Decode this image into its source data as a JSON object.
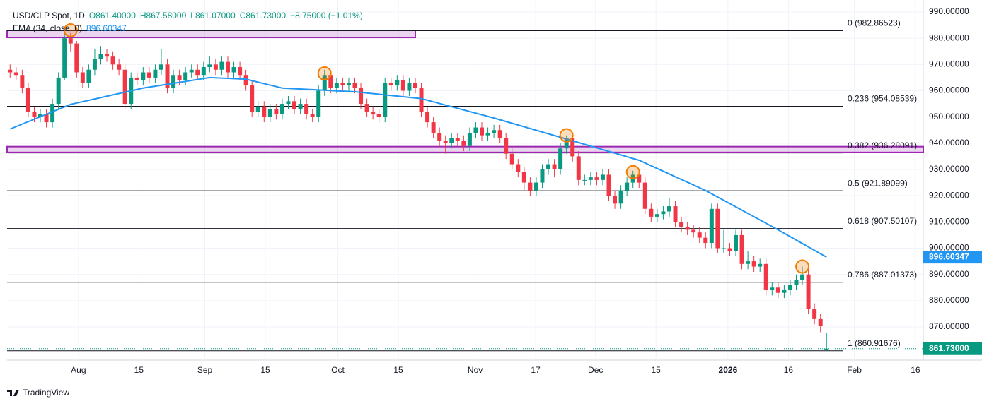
{
  "chart_data": {
    "type": "candlestick",
    "legend": {
      "symbol": "USD/CLP Spot, 1D",
      "open": "O861.40000",
      "high": "H867.58000",
      "low": "L861.07000",
      "close": "C861.73000",
      "change": "−8.75000 (−1.01%)"
    },
    "up_color": "#089981",
    "down_color": "#f23645",
    "open": [
      968,
      967,
      966,
      961,
      952,
      950,
      951,
      948,
      955,
      965,
      980,
      978,
      967,
      963,
      968,
      972,
      974,
      973,
      970,
      968,
      955,
      965,
      964,
      967,
      965,
      968,
      970,
      961,
      966,
      964,
      967,
      968,
      966,
      969,
      970,
      968,
      971,
      967,
      969,
      966,
      962,
      952,
      954,
      950,
      953,
      951,
      955,
      956,
      953,
      955,
      951,
      950,
      960,
      966,
      961,
      963,
      962,
      963,
      961,
      955,
      952,
      951,
      950,
      963,
      962,
      964,
      960,
      963,
      961,
      952,
      948,
      944,
      941,
      940,
      942,
      941,
      939,
      944,
      946,
      943,
      944,
      945,
      942,
      936,
      932,
      929,
      925,
      922,
      925,
      930,
      932,
      930,
      938,
      942,
      935,
      926,
      926,
      927,
      926,
      928,
      920,
      917,
      922,
      925,
      928,
      925,
      915,
      912,
      913,
      914,
      916,
      910,
      908,
      907,
      906,
      904,
      902,
      915,
      900,
      900,
      899,
      905,
      894,
      895,
      893,
      894,
      884,
      885,
      883,
      884,
      886,
      888,
      890,
      877,
      873,
      861.4
    ],
    "high": [
      970,
      969,
      968,
      963,
      954,
      953,
      953,
      957,
      967,
      983.5,
      982,
      979,
      969,
      970,
      976,
      977,
      976,
      975,
      972,
      970,
      967,
      967,
      969,
      969,
      970,
      976,
      972,
      968,
      968,
      969,
      970,
      970,
      971,
      973,
      972,
      973,
      973,
      971,
      971,
      968,
      964,
      956,
      956,
      955,
      955,
      957,
      958,
      958,
      957,
      957,
      953,
      962,
      968,
      968,
      965,
      965,
      965,
      965,
      963,
      957,
      954,
      953,
      965,
      965,
      966,
      966,
      965,
      965,
      963,
      954,
      950,
      946,
      943,
      944,
      944,
      943,
      946,
      948,
      948,
      946,
      947,
      947,
      944,
      938,
      934,
      931,
      927,
      927,
      932,
      934,
      934,
      940,
      943,
      944,
      937,
      928,
      929,
      929,
      930,
      930,
      922,
      924,
      927,
      929.5,
      930,
      927,
      917,
      915,
      916,
      919,
      918,
      912,
      910,
      909,
      908,
      906,
      917,
      917,
      907,
      902,
      907,
      907,
      899,
      897,
      896,
      896,
      887,
      887,
      886,
      888,
      890,
      893,
      892,
      879,
      875,
      867.58
    ],
    "low": [
      965,
      964,
      959,
      950,
      948,
      948,
      946,
      946,
      953,
      964,
      975,
      965,
      961,
      961,
      966,
      970,
      971,
      968,
      966,
      953,
      953,
      962,
      962,
      963,
      963,
      966,
      959,
      959,
      962,
      962,
      965,
      964,
      964,
      967,
      966,
      966,
      965,
      965,
      964,
      960,
      950,
      950,
      948,
      948,
      949,
      949,
      953,
      951,
      951,
      949,
      948,
      948,
      958,
      959,
      959,
      960,
      960,
      959,
      953,
      950,
      949,
      948,
      948,
      960,
      960,
      958,
      958,
      959,
      950,
      946,
      942,
      939,
      936,
      938,
      939,
      937,
      937,
      942,
      941,
      941,
      942,
      940,
      934,
      930,
      927,
      922,
      920,
      920,
      923,
      928,
      927,
      928,
      936,
      933,
      924,
      924,
      924,
      924,
      924,
      918,
      915,
      915,
      920,
      923,
      923,
      913,
      910,
      910,
      911,
      912,
      908,
      906,
      905,
      904,
      902,
      900,
      900,
      898,
      898,
      897,
      897,
      892,
      892,
      891,
      891,
      882,
      882,
      881,
      881,
      882,
      884,
      886,
      875,
      871,
      868,
      861.07
    ],
    "close": [
      967,
      966,
      961,
      952,
      950,
      951,
      948,
      955,
      965,
      980,
      978,
      967,
      963,
      968,
      972,
      974,
      973,
      970,
      968,
      955,
      965,
      964,
      967,
      965,
      968,
      970,
      961,
      966,
      964,
      967,
      968,
      966,
      969,
      970,
      968,
      971,
      967,
      969,
      966,
      962,
      952,
      954,
      950,
      953,
      951,
      955,
      956,
      953,
      955,
      951,
      950,
      960,
      966,
      961,
      963,
      962,
      963,
      961,
      955,
      952,
      951,
      950,
      963,
      962,
      964,
      960,
      963,
      961,
      952,
      948,
      944,
      941,
      940,
      942,
      941,
      939,
      944,
      946,
      943,
      944,
      945,
      942,
      936,
      932,
      929,
      925,
      922,
      925,
      930,
      932,
      930,
      938,
      942,
      935,
      926,
      926,
      927,
      926,
      928,
      920,
      917,
      922,
      925,
      928,
      925,
      915,
      912,
      913,
      914,
      916,
      910,
      908,
      907,
      906,
      904,
      902,
      915,
      900,
      900,
      899,
      905,
      894,
      895,
      893,
      894,
      884,
      885,
      883,
      884,
      886,
      888,
      890,
      877,
      873,
      870.48,
      861.73
    ],
    "last_price_label": "861.73000",
    "ema": {
      "name": "EMA (34, close, 0)",
      "color": "#2196f3",
      "x": [
        0,
        10,
        22,
        33,
        39,
        45,
        57,
        68,
        80,
        92,
        104,
        115,
        127,
        135
      ],
      "values": [
        945.4,
        954.8,
        961,
        965,
        964.4,
        961,
        959.6,
        957,
        949.6,
        941.6,
        933.5,
        922,
        907,
        896.60347
      ]
    },
    "fibonacci": {
      "color": "#131722",
      "values": [
        982.86523,
        954.08539,
        936.28091,
        921.89099,
        907.50107,
        887.01373,
        860.91676
      ],
      "value_labels": [
        "0 (982.86523)",
        "0.236 (954.08539)",
        "0.382 (936.28091)",
        "0.5 (921.89099)",
        "0.618 (907.50107)",
        "0.786 (887.01373)",
        "1 (860.91676)"
      ]
    },
    "zones": [
      {
        "xlim": [
          -0.5,
          67
        ],
        "ylim": [
          980.3,
          983
        ]
      },
      {
        "xlim": [
          -0.5,
          151
        ],
        "ylim": [
          936.5,
          938.7
        ]
      }
    ],
    "zone_color": "#9c27b0",
    "markers": {
      "color": "#f57c00",
      "x": [
        10,
        52,
        92,
        103,
        131
      ],
      "values": [
        983,
        966.6,
        943,
        929,
        893
      ]
    },
    "xlim": [
      -0.5,
      151
    ],
    "ylim": [
      857.36,
      994.57
    ],
    "xticks": [
      {
        "value": 11.3,
        "label": "Aug"
      },
      {
        "value": 21.3,
        "label": "15"
      },
      {
        "value": 32.2,
        "label": "Sep"
      },
      {
        "value": 42.2,
        "label": "15"
      },
      {
        "value": 54.2,
        "label": "Oct"
      },
      {
        "value": 64.2,
        "label": "15"
      },
      {
        "value": 76.9,
        "label": "Nov"
      },
      {
        "value": 86.9,
        "label": "17"
      },
      {
        "value": 96.8,
        "label": "Dec"
      },
      {
        "value": 106.8,
        "label": "15"
      },
      {
        "value": 118.7,
        "label": "2026"
      },
      {
        "value": 128.7,
        "label": "16"
      },
      {
        "value": 139.6,
        "label": "Feb"
      },
      {
        "value": 149.7,
        "label": "16"
      }
    ],
    "yticks": [
      {
        "value": 990,
        "label": "990.00000"
      },
      {
        "value": 980,
        "label": "980.00000"
      },
      {
        "value": 970,
        "label": "970.00000"
      },
      {
        "value": 960,
        "label": "960.00000"
      },
      {
        "value": 950,
        "label": "950.00000"
      },
      {
        "value": 940,
        "label": "940.00000"
      },
      {
        "value": 930,
        "label": "930.00000"
      },
      {
        "value": 920,
        "label": "920.00000"
      },
      {
        "value": 910,
        "label": "910.00000"
      },
      {
        "value": 900,
        "label": "900.00000"
      },
      {
        "value": 890,
        "label": "890.00000"
      },
      {
        "value": 880,
        "label": "880.00000"
      },
      {
        "value": 870,
        "label": "870.00000"
      }
    ],
    "grid": true,
    "brand": "TradingView"
  }
}
